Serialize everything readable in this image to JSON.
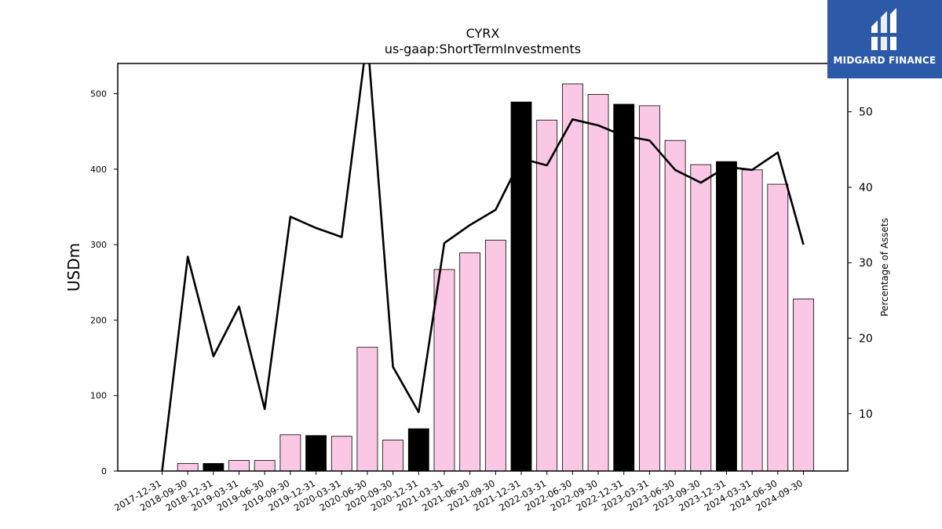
{
  "chart_data": {
    "type": "bar",
    "title": "CYRX",
    "subtitle": "us-gaap:ShortTermInvestments",
    "ylabel_left": "USDm",
    "ylabel_right": "Percentage of Assets",
    "ylim_left": [
      0,
      540
    ],
    "ylim_right": [
      2.4,
      56.4
    ],
    "yticks_left": [
      "0",
      "100",
      "200",
      "300",
      "400",
      "500"
    ],
    "yticks_right": [
      "10",
      "20",
      "30",
      "40",
      "50"
    ],
    "categories": [
      "2017-12-31",
      "2018-09-30",
      "2018-12-31",
      "2019-03-31",
      "2019-06-30",
      "2019-09-30",
      "2019-12-31",
      "2020-03-31",
      "2020-06-30",
      "2020-09-30",
      "2020-12-31",
      "2021-03-31",
      "2021-06-30",
      "2021-09-30",
      "2021-12-31",
      "2022-03-31",
      "2022-06-30",
      "2022-09-30",
      "2022-12-31",
      "2023-03-31",
      "2023-06-30",
      "2023-09-30",
      "2023-12-31",
      "2024-03-31",
      "2024-06-30",
      "2024-09-30"
    ],
    "series": [
      {
        "kind": "bar",
        "values": [
          0,
          10,
          10,
          14,
          14,
          48,
          47,
          46,
          164,
          41,
          56,
          267,
          289,
          306,
          489,
          465,
          513,
          499,
          486,
          484,
          438,
          406,
          410,
          399,
          380,
          228
        ],
        "year_end": [
          false,
          false,
          true,
          false,
          false,
          false,
          true,
          false,
          false,
          false,
          true,
          false,
          false,
          false,
          true,
          false,
          false,
          false,
          true,
          false,
          false,
          false,
          true,
          false,
          false,
          false
        ]
      },
      {
        "kind": "line",
        "axis": "right",
        "values": [
          2.4,
          30.8,
          17.6,
          24.2,
          10.6,
          36.1,
          34.6,
          33.4,
          60.0,
          16.2,
          10.2,
          32.6,
          35.0,
          37.0,
          43.8,
          42.9,
          49.0,
          48.2,
          46.8,
          46.2,
          42.3,
          40.6,
          42.7,
          42.3,
          44.6,
          32.4
        ]
      }
    ],
    "colors": {
      "bar": "#fac8e4",
      "bar_year_end": "#000000",
      "line": "#000000",
      "bar_edge": "#000000"
    }
  },
  "logo": {
    "text": "MIDGARD FINANCE",
    "bg": "#2d5aa8"
  }
}
